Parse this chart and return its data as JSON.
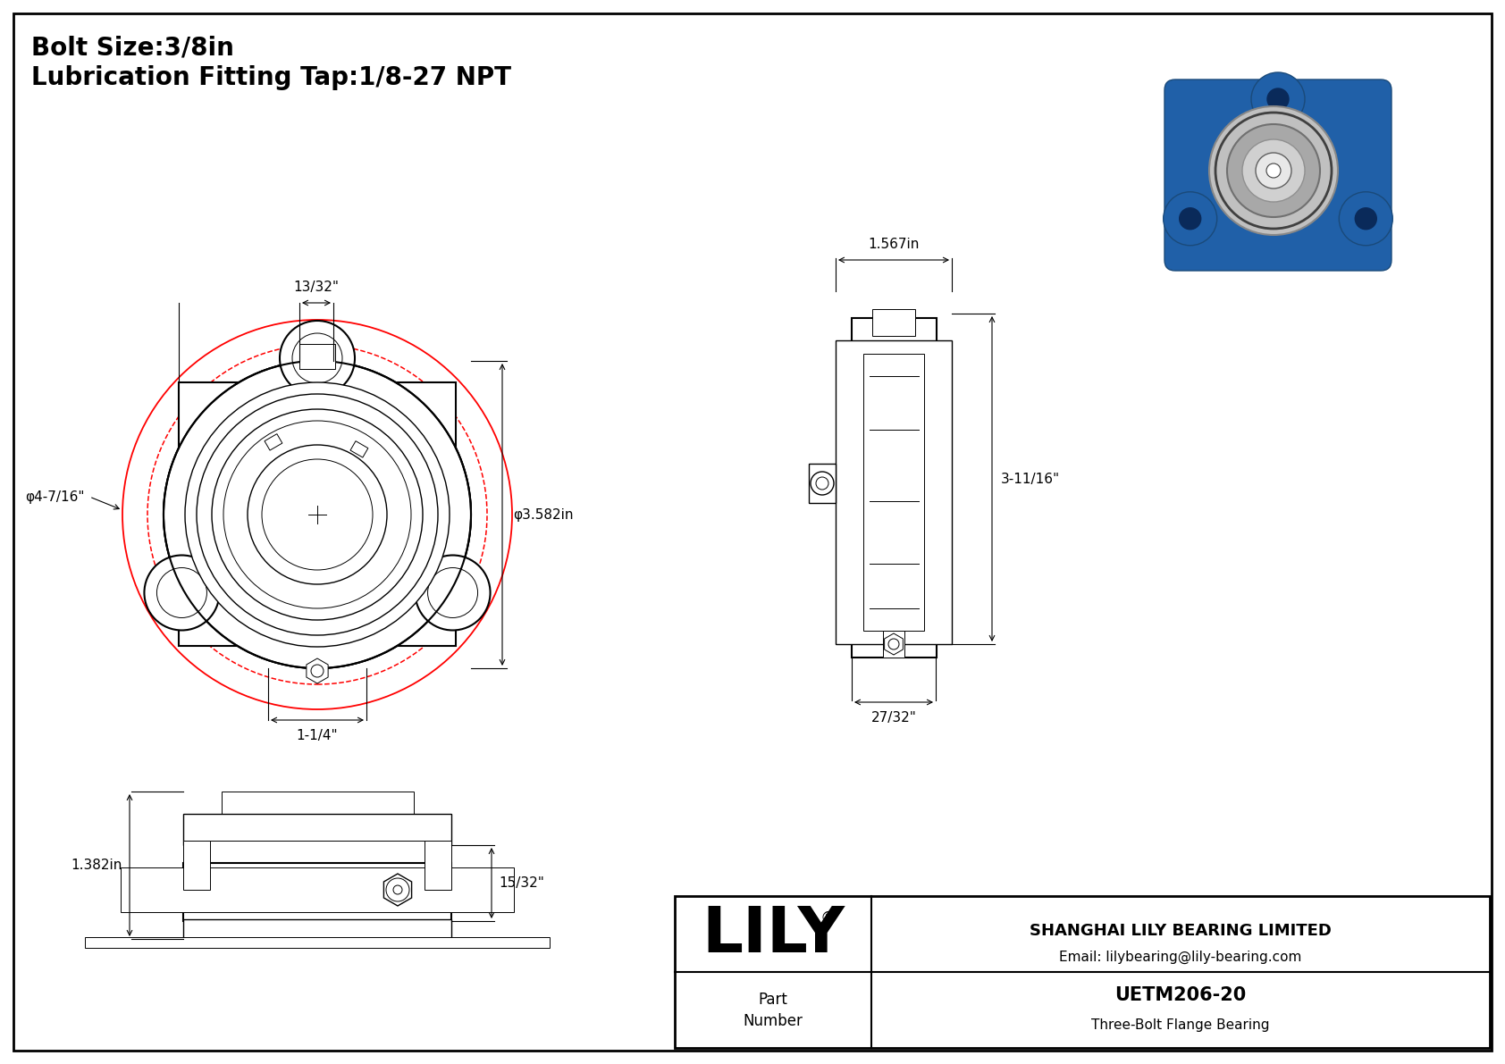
{
  "bg_color": "#ffffff",
  "border_color": "#000000",
  "line_color": "#000000",
  "red_color": "#ff0000",
  "title_line1": "Bolt Size:3/8in",
  "title_line2": "Lubrication Fitting Tap:1/8-27 NPT",
  "dim_13_32": "13/32\"",
  "dim_1_4": "1-1/4\"",
  "dim_4_7_16": "φ4-7/16\"",
  "dim_3_582": "φ3.582in",
  "dim_1_567": "1.567in",
  "dim_3_11_16": "3-11/16\"",
  "dim_27_32": "27/32\"",
  "dim_15_32": "15/32\"",
  "dim_1_382": "1.382in",
  "company": "SHANGHAI LILY BEARING LIMITED",
  "email": "Email: lilybearing@lily-bearing.com",
  "part_number": "UETM206-20",
  "part_type": "Three-Bolt Flange Bearing",
  "brand": "LILY",
  "registered": "®",
  "part_label": "Part\nNumber"
}
